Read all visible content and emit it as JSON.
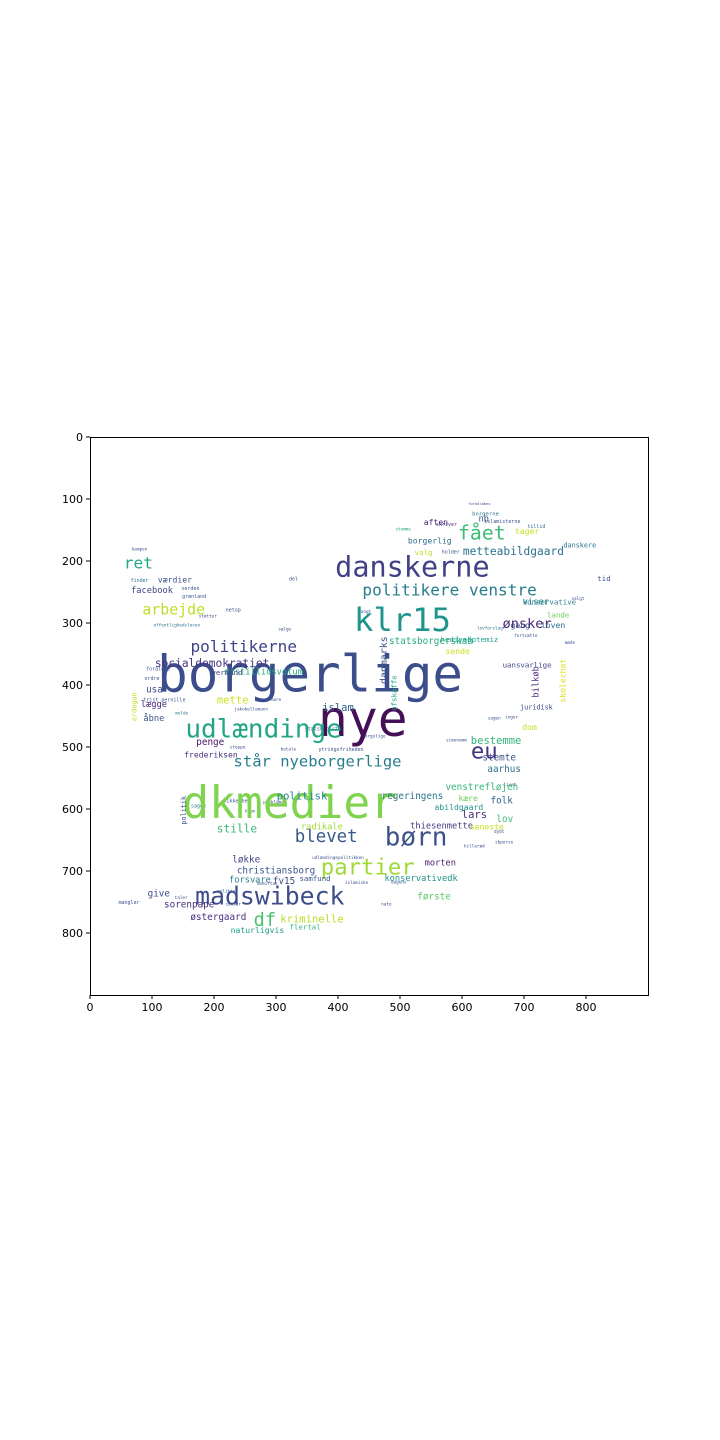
{
  "chart_data": {
    "type": "wordcloud",
    "xlim": [
      0,
      900
    ],
    "ylim": [
      900,
      0
    ],
    "x_ticks": [
      0,
      100,
      200,
      300,
      400,
      500,
      600,
      700,
      800
    ],
    "y_ticks": [
      0,
      100,
      200,
      300,
      400,
      500,
      600,
      700,
      800
    ],
    "x_tick_labels": [
      "0",
      "100",
      "200",
      "300",
      "400",
      "500",
      "600",
      "700",
      "800"
    ],
    "y_tick_labels": [
      "0",
      "100",
      "200",
      "300",
      "400",
      "500",
      "600",
      "700",
      "800"
    ],
    "words": [
      {
        "text": "borgerlige",
        "x": 355,
        "y": 382,
        "size": 82,
        "color": "#3b4d8a",
        "rot": 0
      },
      {
        "text": "nye",
        "x": 440,
        "y": 455,
        "size": 80,
        "color": "#440f57",
        "rot": 0
      },
      {
        "text": "dkmedier",
        "x": 322,
        "y": 590,
        "size": 72,
        "color": "#7fd34e",
        "rot": 0
      },
      {
        "text": "klr15",
        "x": 504,
        "y": 295,
        "size": 52,
        "color": "#1f948c",
        "rot": 0
      },
      {
        "text": "danskerne",
        "x": 520,
        "y": 210,
        "size": 46,
        "color": "#424086",
        "rot": 0
      },
      {
        "text": "madswibeck",
        "x": 290,
        "y": 740,
        "size": 40,
        "color": "#3e4c8a",
        "rot": 0
      },
      {
        "text": "udlændinge",
        "x": 280,
        "y": 472,
        "size": 42,
        "color": "#21a585",
        "rot": 0
      },
      {
        "text": "børn",
        "x": 526,
        "y": 646,
        "size": 42,
        "color": "#3b528b",
        "rot": 0
      },
      {
        "text": "partier",
        "x": 448,
        "y": 694,
        "size": 36,
        "color": "#a0da39",
        "rot": 0
      },
      {
        "text": "eu",
        "x": 636,
        "y": 507,
        "size": 36,
        "color": "#46337e",
        "rot": 0
      },
      {
        "text": "fået",
        "x": 632,
        "y": 155,
        "size": 32,
        "color": "#3dbc74",
        "rot": 0
      },
      {
        "text": "blevet",
        "x": 381,
        "y": 645,
        "size": 28,
        "color": "#38588c",
        "rot": 0
      },
      {
        "text": "df",
        "x": 282,
        "y": 780,
        "size": 30,
        "color": "#4ac16d",
        "rot": 0
      },
      {
        "text": "politikere venstre",
        "x": 580,
        "y": 247,
        "size": 26,
        "color": "#287c8e",
        "rot": 0
      },
      {
        "text": "politikerne",
        "x": 248,
        "y": 338,
        "size": 26,
        "color": "#414487",
        "rot": 0
      },
      {
        "text": "står nyeborgerlige",
        "x": 367,
        "y": 523,
        "size": 25,
        "color": "#277f8e",
        "rot": 0
      },
      {
        "text": "arbejde",
        "x": 135,
        "y": 278,
        "size": 24,
        "color": "#bddf26",
        "rot": 0
      },
      {
        "text": "ret",
        "x": 78,
        "y": 203,
        "size": 26,
        "color": "#22a884",
        "rot": 0
      },
      {
        "text": "ønsker",
        "x": 705,
        "y": 302,
        "size": 22,
        "color": "#482475",
        "rot": 0
      },
      {
        "text": "socialdemokratiet",
        "x": 197,
        "y": 365,
        "size": 18,
        "color": "#453781",
        "rot": 0
      },
      {
        "text": "metteabildgaard",
        "x": 683,
        "y": 185,
        "size": 18,
        "color": "#2c728e",
        "rot": 0
      },
      {
        "text": "danmarks",
        "x": 475,
        "y": 360,
        "size": 16,
        "color": "#3b518b",
        "rot": 90
      },
      {
        "text": "mette",
        "x": 230,
        "y": 425,
        "size": 17,
        "color": "#cde11d",
        "rot": 0
      },
      {
        "text": "politisk",
        "x": 342,
        "y": 580,
        "size": 17,
        "color": "#25848e",
        "rot": 0
      },
      {
        "text": "stille",
        "x": 237,
        "y": 632,
        "size": 18,
        "color": "#3aba76",
        "rot": 0
      },
      {
        "text": "kriminelle",
        "x": 358,
        "y": 778,
        "size": 17,
        "color": "#b8de29",
        "rot": 0
      },
      {
        "text": "christiansborg",
        "x": 300,
        "y": 700,
        "size": 15,
        "color": "#39568c",
        "rot": 0
      },
      {
        "text": "forsvare",
        "x": 258,
        "y": 715,
        "size": 14,
        "color": "#2a788e",
        "rot": 0
      },
      {
        "text": "fv15",
        "x": 313,
        "y": 717,
        "size": 15,
        "color": "#3e4989",
        "rot": 0
      },
      {
        "text": "sorenpape",
        "x": 160,
        "y": 755,
        "size": 15,
        "color": "#472d7b",
        "rot": 0
      },
      {
        "text": "løkke",
        "x": 252,
        "y": 682,
        "size": 15,
        "color": "#3f4788",
        "rot": 0
      },
      {
        "text": "give",
        "x": 111,
        "y": 737,
        "size": 15,
        "color": "#3d4e8a",
        "rot": 0
      },
      {
        "text": "østergaard",
        "x": 207,
        "y": 775,
        "size": 15,
        "color": "#472f7d",
        "rot": 0
      },
      {
        "text": "naturligvis",
        "x": 270,
        "y": 795,
        "size": 13,
        "color": "#1fa088",
        "rot": 0
      },
      {
        "text": "flertal",
        "x": 347,
        "y": 790,
        "size": 12,
        "color": "#2fb47c",
        "rot": 0
      },
      {
        "text": "samfund",
        "x": 363,
        "y": 712,
        "size": 12,
        "color": "#3b528b",
        "rot": 0
      },
      {
        "text": "konservativedk",
        "x": 534,
        "y": 713,
        "size": 14,
        "color": "#20928c",
        "rot": 0
      },
      {
        "text": "første",
        "x": 555,
        "y": 742,
        "size": 15,
        "color": "#5ec962",
        "rot": 0
      },
      {
        "text": "morten",
        "x": 565,
        "y": 688,
        "size": 14,
        "color": "#481b6d",
        "rot": 0
      },
      {
        "text": "thiesenmette",
        "x": 567,
        "y": 628,
        "size": 14,
        "color": "#453882",
        "rot": 0
      },
      {
        "text": "lars",
        "x": 620,
        "y": 610,
        "size": 17,
        "color": "#472c7a",
        "rot": 0
      },
      {
        "text": "radikale",
        "x": 374,
        "y": 630,
        "size": 14,
        "color": "#a2da37",
        "rot": 0
      },
      {
        "text": "regeringens",
        "x": 520,
        "y": 580,
        "size": 15,
        "color": "#2b748e",
        "rot": 0
      },
      {
        "text": "venstrefløjen",
        "x": 632,
        "y": 565,
        "size": 15,
        "color": "#35b779",
        "rot": 0
      },
      {
        "text": "folk",
        "x": 664,
        "y": 587,
        "size": 15,
        "color": "#355f8d",
        "rot": 0
      },
      {
        "text": "lov",
        "x": 669,
        "y": 617,
        "size": 15,
        "color": "#3fbc73",
        "rot": 0
      },
      {
        "text": "kære",
        "x": 610,
        "y": 582,
        "size": 13,
        "color": "#6cce59",
        "rot": 0
      },
      {
        "text": "abildgaard",
        "x": 595,
        "y": 597,
        "size": 13,
        "color": "#21918c",
        "rot": 0
      },
      {
        "text": "seneste",
        "x": 640,
        "y": 628,
        "size": 13,
        "color": "#cae11f",
        "rot": 0
      },
      {
        "text": "aarhus",
        "x": 668,
        "y": 536,
        "size": 15,
        "color": "#2e6f8e",
        "rot": 0
      },
      {
        "text": "stemte",
        "x": 660,
        "y": 518,
        "size": 15,
        "color": "#39568c",
        "rot": 0
      },
      {
        "text": "bestemme",
        "x": 655,
        "y": 490,
        "size": 17,
        "color": "#2fb47c",
        "rot": 0
      },
      {
        "text": "dom",
        "x": 709,
        "y": 468,
        "size": 13,
        "color": "#c2df23",
        "rot": 0
      },
      {
        "text": "islam",
        "x": 400,
        "y": 437,
        "size": 17,
        "color": "#34608d",
        "rot": 0
      },
      {
        "text": "statsborgerskab",
        "x": 550,
        "y": 330,
        "size": 15,
        "color": "#28ae80",
        "rot": 0
      },
      {
        "text": "sende",
        "x": 593,
        "y": 345,
        "size": 13,
        "color": "#d2e21b",
        "rot": 0
      },
      {
        "text": "mistillidsvotum",
        "x": 280,
        "y": 380,
        "size": 14,
        "color": "#25ac82",
        "rot": 0
      },
      {
        "text": "vermund",
        "x": 221,
        "y": 380,
        "size": 12,
        "color": "#404588",
        "rot": 0
      },
      {
        "text": "penge",
        "x": 194,
        "y": 493,
        "size": 15,
        "color": "#481467",
        "rot": 0
      },
      {
        "text": "frederiksen",
        "x": 195,
        "y": 512,
        "size": 13,
        "color": "#46307e",
        "rot": 0
      },
      {
        "text": "usa",
        "x": 104,
        "y": 408,
        "size": 15,
        "color": "#3e4a89",
        "rot": 0
      },
      {
        "text": "lægge",
        "x": 103,
        "y": 432,
        "size": 14,
        "color": "#482475",
        "rot": 0
      },
      {
        "text": "åbne",
        "x": 103,
        "y": 455,
        "size": 14,
        "color": "#3b528b",
        "rot": 0
      },
      {
        "text": "facebook",
        "x": 100,
        "y": 248,
        "size": 14,
        "color": "#414487",
        "rot": 0
      },
      {
        "text": "værdier",
        "x": 137,
        "y": 230,
        "size": 13,
        "color": "#3d4d8a",
        "rot": 0
      },
      {
        "text": "gang",
        "x": 694,
        "y": 303,
        "size": 13,
        "color": "#3e4c8a",
        "rot": 0
      },
      {
        "text": "loven",
        "x": 747,
        "y": 303,
        "size": 13,
        "color": "#2f6b8e",
        "rot": 0
      },
      {
        "text": "viser",
        "x": 719,
        "y": 267,
        "size": 14,
        "color": "#25848e",
        "rot": 0
      },
      {
        "text": "nb",
        "x": 635,
        "y": 133,
        "size": 14,
        "color": "#375a8c",
        "rot": 0
      },
      {
        "text": "borgerlig",
        "x": 548,
        "y": 167,
        "size": 13,
        "color": "#2d708e",
        "rot": 0
      },
      {
        "text": "aften",
        "x": 558,
        "y": 137,
        "size": 13,
        "color": "#472878",
        "rot": 0
      },
      {
        "text": "valg",
        "x": 538,
        "y": 186,
        "size": 12,
        "color": "#c0df25",
        "rot": 0
      },
      {
        "text": "tager",
        "x": 705,
        "y": 152,
        "size": 13,
        "color": "#c8e020",
        "rot": 0
      },
      {
        "text": "hediyedptemiz",
        "x": 612,
        "y": 327,
        "size": 12,
        "color": "#1fa088",
        "rot": 0
      },
      {
        "text": "bilkøb",
        "x": 720,
        "y": 395,
        "size": 14,
        "color": "#4a2c7c",
        "rot": 90
      },
      {
        "text": "skolechat",
        "x": 762,
        "y": 393,
        "size": 13,
        "color": "#d8e219",
        "rot": 90
      },
      {
        "text": "uansvarlige",
        "x": 705,
        "y": 368,
        "size": 12,
        "color": "#3f4788",
        "rot": 0
      },
      {
        "text": "konservative",
        "x": 741,
        "y": 266,
        "size": 12,
        "color": "#287d8e",
        "rot": 0
      },
      {
        "text": "lande",
        "x": 755,
        "y": 287,
        "size": 12,
        "color": "#6ece58",
        "rot": 0
      },
      {
        "text": "danskere",
        "x": 790,
        "y": 175,
        "size": 11,
        "color": "#2c728e",
        "rot": 0
      },
      {
        "text": "tid",
        "x": 829,
        "y": 228,
        "size": 12,
        "color": "#3b528b",
        "rot": 0
      },
      {
        "text": "afskaffe",
        "x": 490,
        "y": 413,
        "size": 12,
        "color": "#24aa83",
        "rot": 90
      },
      {
        "text": "erdogan",
        "x": 72,
        "y": 435,
        "size": 11,
        "color": "#c0df25",
        "rot": 90
      },
      {
        "text": "politik",
        "x": 152,
        "y": 602,
        "size": 11,
        "color": "#3b528b",
        "rot": 90
      },
      {
        "text": "juridisk",
        "x": 720,
        "y": 436,
        "size": 11,
        "color": "#3e4a89",
        "rot": 0
      }
    ],
    "small_words": [
      {
        "text": "forkdlbbes",
        "x": 628,
        "y": 108,
        "size": 6,
        "color": "#3b528b"
      },
      {
        "text": "borgerne",
        "x": 638,
        "y": 125,
        "size": 9,
        "color": "#2c728e"
      },
      {
        "text": "islamisterne",
        "x": 665,
        "y": 137,
        "size": 8,
        "color": "#3b528b"
      },
      {
        "text": "skriver",
        "x": 575,
        "y": 142,
        "size": 8,
        "color": "#472d7b"
      },
      {
        "text": "tillid",
        "x": 720,
        "y": 145,
        "size": 8,
        "color": "#2c728e"
      },
      {
        "text": "stemme",
        "x": 505,
        "y": 150,
        "size": 7,
        "color": "#21a585"
      },
      {
        "text": "holder",
        "x": 582,
        "y": 186,
        "size": 8,
        "color": "#3b528b"
      },
      {
        "text": "kampen",
        "x": 80,
        "y": 182,
        "size": 7,
        "color": "#3b528b"
      },
      {
        "text": "finder",
        "x": 80,
        "y": 232,
        "size": 8,
        "color": "#2c728e"
      },
      {
        "text": "verden",
        "x": 162,
        "y": 245,
        "size": 8,
        "color": "#3b528b"
      },
      {
        "text": "grønland",
        "x": 168,
        "y": 258,
        "size": 8,
        "color": "#3b528b"
      },
      {
        "text": "netop",
        "x": 231,
        "y": 280,
        "size": 8,
        "color": "#3b528b"
      },
      {
        "text": "del",
        "x": 328,
        "y": 230,
        "size": 8,
        "color": "#3b528b"
      },
      {
        "text": "støtter",
        "x": 190,
        "y": 290,
        "size": 7,
        "color": "#3b528b"
      },
      {
        "text": "sælge",
        "x": 314,
        "y": 311,
        "size": 7,
        "color": "#3b528b"
      },
      {
        "text": "offentlighedsloven",
        "x": 140,
        "y": 305,
        "size": 7,
        "color": "#2c728e"
      },
      {
        "text": "foraldre",
        "x": 110,
        "y": 375,
        "size": 8,
        "color": "#3b528b"
      },
      {
        "text": "ordre",
        "x": 100,
        "y": 390,
        "size": 8,
        "color": "#3b528b"
      },
      {
        "text": "trist pernille",
        "x": 120,
        "y": 425,
        "size": 8,
        "color": "#3b528b"
      },
      {
        "text": "melde",
        "x": 148,
        "y": 447,
        "size": 7,
        "color": "#2c728e"
      },
      {
        "text": "jakobellemann",
        "x": 260,
        "y": 440,
        "size": 7,
        "color": "#3b528b"
      },
      {
        "text": "høre",
        "x": 300,
        "y": 425,
        "size": 7,
        "color": "#3b528b"
      },
      {
        "text": "statsminister",
        "x": 378,
        "y": 472,
        "size": 8,
        "color": "#3b528b"
      },
      {
        "text": "ytringsfriheden",
        "x": 405,
        "y": 505,
        "size": 8,
        "color": "#3b528b"
      },
      {
        "text": "borgelige",
        "x": 458,
        "y": 484,
        "size": 7,
        "color": "#3b528b"
      },
      {
        "text": "betale",
        "x": 320,
        "y": 505,
        "size": 7,
        "color": "#3b528b"
      },
      {
        "text": "stoppe",
        "x": 238,
        "y": 502,
        "size": 7,
        "color": "#3b528b"
      },
      {
        "text": "sikkerhed",
        "x": 237,
        "y": 588,
        "size": 8,
        "color": "#3b528b"
      },
      {
        "text": "problemet",
        "x": 298,
        "y": 590,
        "size": 7,
        "color": "#3b528b"
      },
      {
        "text": "sagde",
        "x": 175,
        "y": 596,
        "size": 8,
        "color": "#2c728e"
      },
      {
        "text": "hjem",
        "x": 258,
        "y": 605,
        "size": 7,
        "color": "#2c728e"
      },
      {
        "text": "udlændingepolitikken",
        "x": 400,
        "y": 680,
        "size": 7,
        "color": "#3b528b"
      },
      {
        "text": "dagens",
        "x": 498,
        "y": 719,
        "size": 7,
        "color": "#3b528b"
      },
      {
        "text": "islamiske",
        "x": 430,
        "y": 720,
        "size": 7,
        "color": "#3b528b"
      },
      {
        "text": "demirtas",
        "x": 286,
        "y": 722,
        "size": 7,
        "color": "#3b528b"
      },
      {
        "text": "censur",
        "x": 231,
        "y": 755,
        "size": 7,
        "color": "#3b528b"
      },
      {
        "text": "nato",
        "x": 478,
        "y": 755,
        "size": 7,
        "color": "#3b528b"
      },
      {
        "text": "mangler",
        "x": 63,
        "y": 752,
        "size": 8,
        "color": "#3b528b"
      },
      {
        "text": "taler",
        "x": 147,
        "y": 744,
        "size": 7,
        "color": "#3b528b"
      },
      {
        "text": "simonemm",
        "x": 591,
        "y": 490,
        "size": 7,
        "color": "#3b528b"
      },
      {
        "text": "inger",
        "x": 680,
        "y": 453,
        "size": 7,
        "color": "#3b528b"
      },
      {
        "text": "sagen",
        "x": 652,
        "y": 455,
        "size": 7,
        "color": "#3b528b"
      },
      {
        "text": "livet",
        "x": 677,
        "y": 562,
        "size": 7,
        "color": "#3b528b"
      },
      {
        "text": "hillerød",
        "x": 620,
        "y": 661,
        "size": 7,
        "color": "#3b528b"
      },
      {
        "text": "dybt",
        "x": 660,
        "y": 638,
        "size": 7,
        "color": "#3b528b"
      },
      {
        "text": "sbporse",
        "x": 668,
        "y": 655,
        "size": 7,
        "color": "#3b528b"
      },
      {
        "text": "politiet",
        "x": 222,
        "y": 734,
        "size": 7,
        "color": "#3b528b"
      },
      {
        "text": "langt",
        "x": 443,
        "y": 283,
        "size": 7,
        "color": "#3b528b"
      },
      {
        "text": "fortsætte",
        "x": 703,
        "y": 322,
        "size": 7,
        "color": "#3b528b"
      },
      {
        "text": "møde",
        "x": 774,
        "y": 333,
        "size": 7,
        "color": "#3b528b"
      },
      {
        "text": "valgt",
        "x": 787,
        "y": 262,
        "size": 7,
        "color": "#3b528b"
      },
      {
        "text": "lovforslag",
        "x": 645,
        "y": 310,
        "size": 7,
        "color": "#2c728e"
      }
    ]
  }
}
